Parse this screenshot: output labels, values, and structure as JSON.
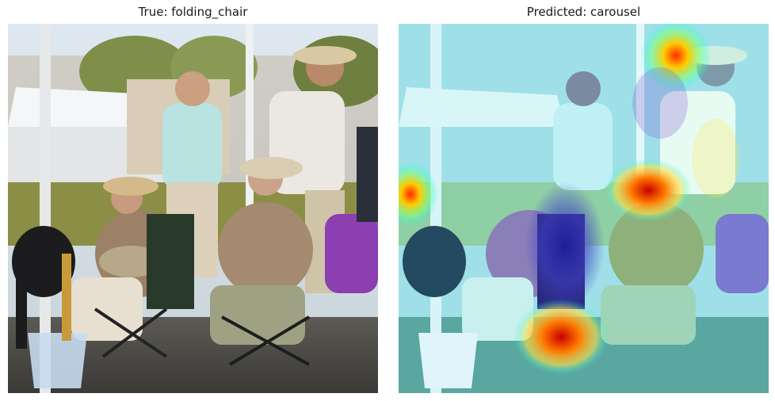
{
  "panels": [
    {
      "title": "True: folding_chair",
      "kind": "original"
    },
    {
      "title": "Predicted: carousel",
      "kind": "heatmap-overlay"
    }
  ],
  "heatmap": {
    "colormap": "jet",
    "hotspots": [
      "upper-right",
      "center-chest",
      "lower-center",
      "left-edge"
    ]
  }
}
